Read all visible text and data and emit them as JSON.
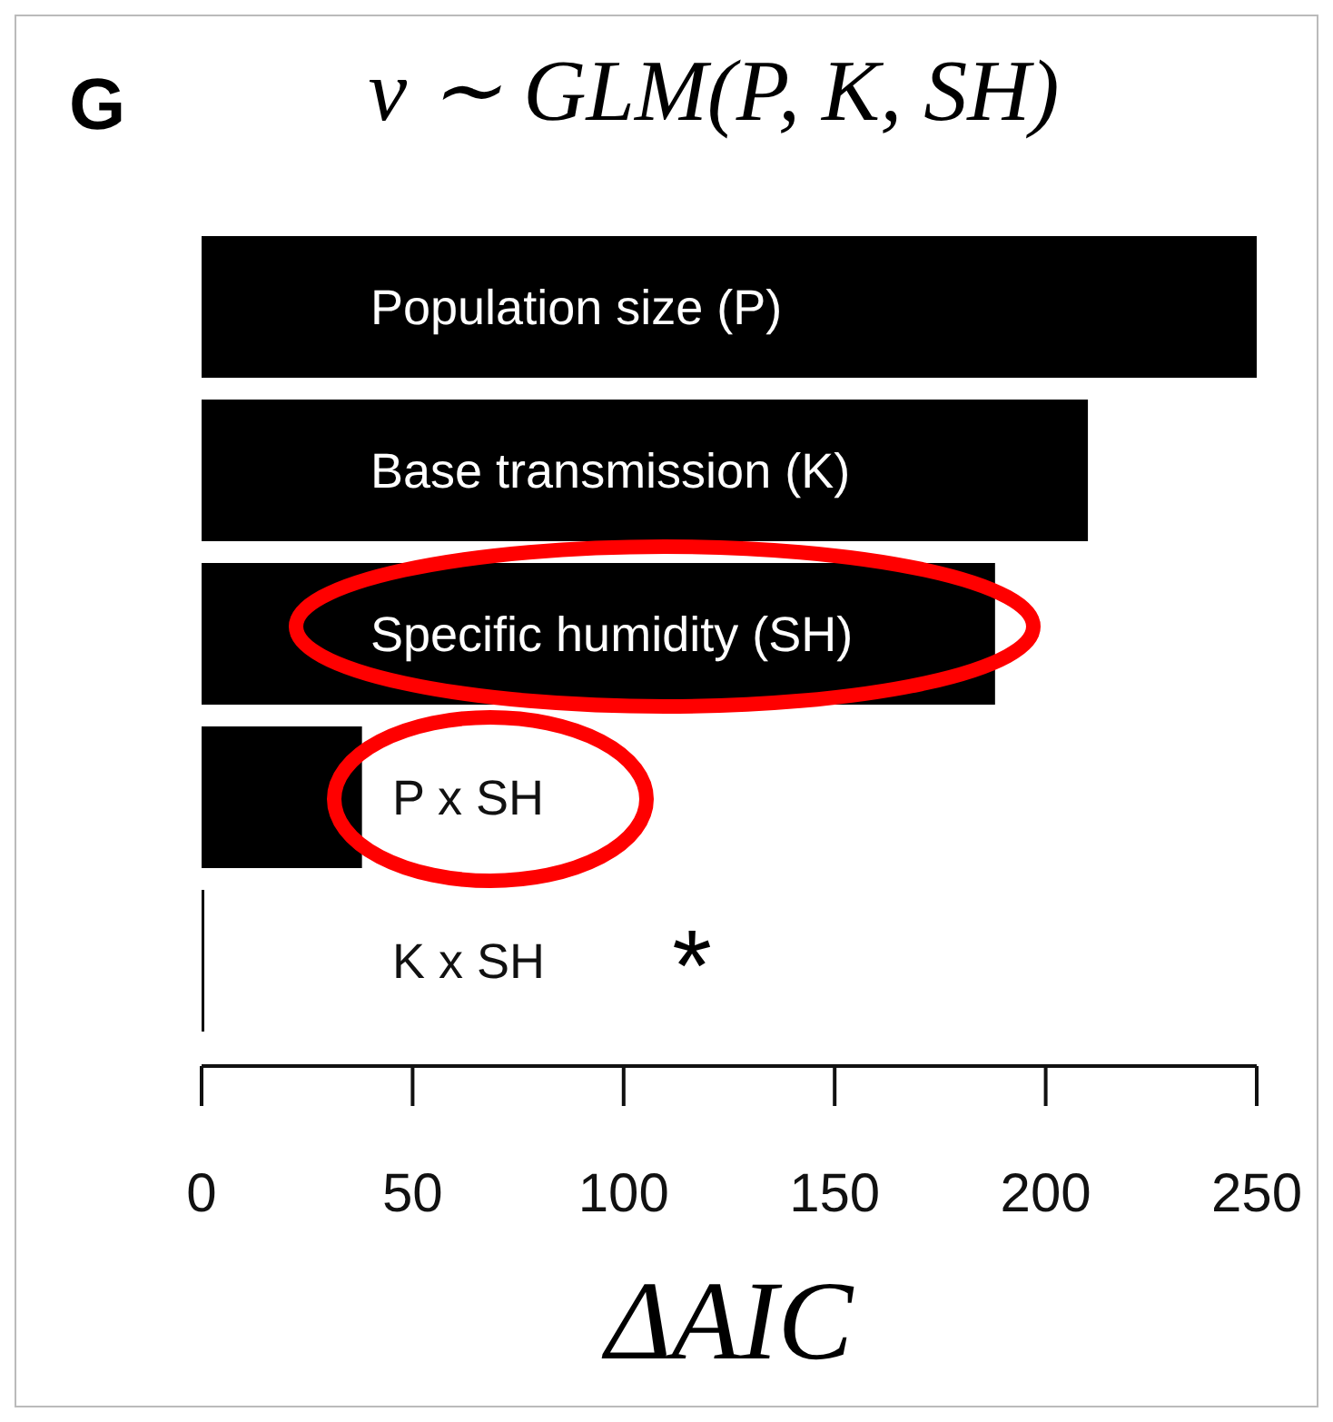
{
  "chart_data": {
    "type": "bar",
    "orientation": "horizontal",
    "title": "ν ∼ GLM(P, K, SH)",
    "xlabel": "ΔAIC",
    "categories": [
      "Population size (P)",
      "Base transmission (K)",
      "Specific humidity (SH)",
      "P x SH",
      "K x SH"
    ],
    "values": [
      250,
      210,
      188,
      38,
      0.5
    ],
    "color": "#000000",
    "xlim": [
      0,
      250
    ],
    "xticks": [
      0,
      50,
      100,
      150,
      200,
      250
    ],
    "grid": false,
    "annotations": [
      "G",
      "*"
    ]
  }
}
